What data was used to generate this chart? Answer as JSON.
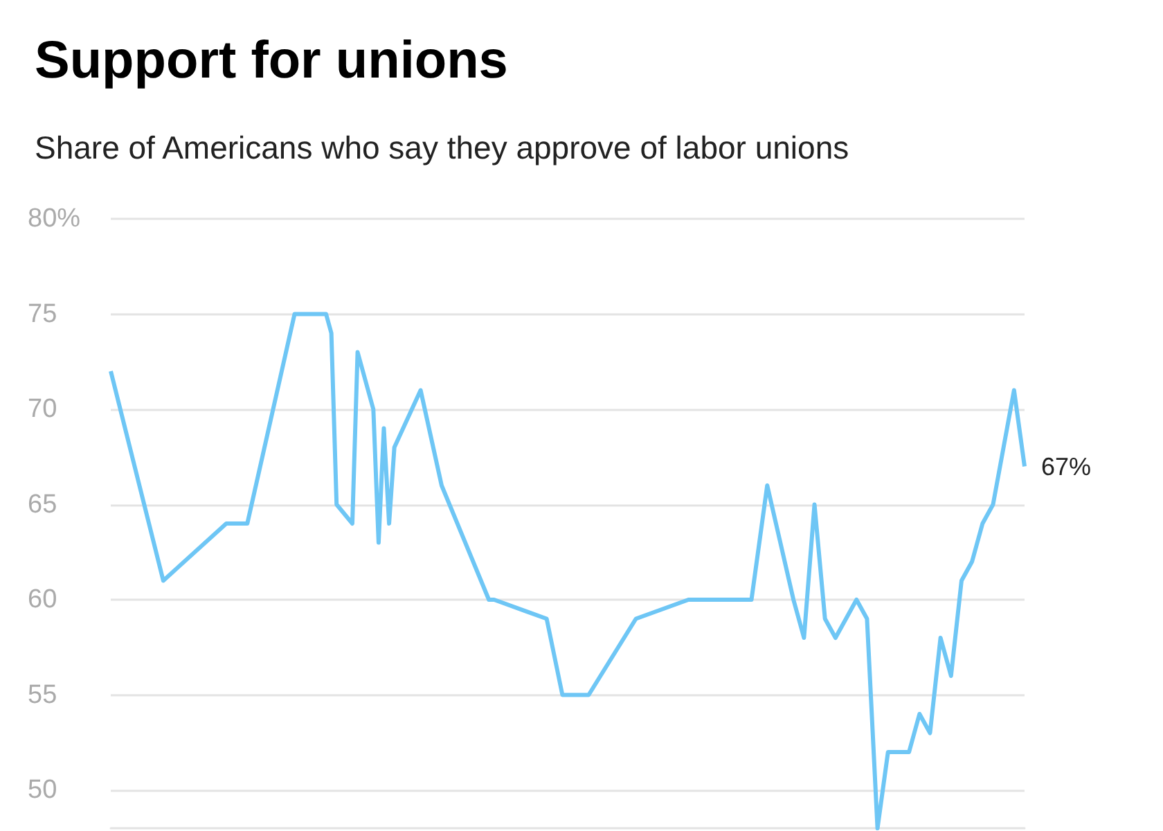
{
  "chart_data": {
    "type": "line",
    "title": "Support for unions",
    "subtitle": "Share of Americans who say they approve of labor unions",
    "categories": [
      null,
      null,
      null,
      null,
      null,
      null,
      null,
      null,
      null,
      null,
      null,
      null,
      null,
      null,
      null,
      null,
      null,
      null,
      null,
      null,
      null,
      null,
      null,
      null,
      null,
      null,
      null,
      null,
      null,
      null,
      null,
      null,
      null,
      null,
      null,
      null,
      null,
      null,
      null,
      null,
      null,
      null,
      null,
      null,
      null,
      null,
      null,
      null,
      null,
      null,
      null,
      null,
      null,
      null,
      null,
      null,
      null,
      null,
      null,
      null,
      null,
      null,
      null,
      null,
      null,
      null,
      null,
      null,
      null,
      null,
      null,
      null,
      null,
      null,
      null,
      null,
      null,
      null,
      null,
      null,
      null,
      null,
      null,
      null,
      null,
      null,
      null,
      null,
      null,
      null,
      null,
      null,
      null,
      null,
      null,
      null,
      null,
      null,
      null,
      null,
      null,
      null,
      null,
      null,
      null,
      null,
      null,
      null,
      null,
      null,
      null,
      null,
      null,
      null,
      null,
      null,
      null,
      null,
      null,
      null,
      null,
      null,
      null,
      null,
      null,
      null,
      null,
      null,
      null,
      null,
      null,
      null,
      null,
      null,
      null,
      null,
      null,
      null,
      null,
      null,
      null,
      null,
      null,
      null,
      null,
      null,
      null,
      null,
      null,
      null,
      null,
      null,
      null,
      null,
      null,
      null,
      null,
      null,
      null,
      null,
      null,
      null,
      null,
      null,
      null,
      null,
      null,
      null,
      null,
      null,
      null,
      null,
      null,
      null,
      null
    ],
    "series": [
      {
        "color": "#6ec6f5",
        "values": [
          72,
          null,
          null,
          null,
          null,
          null,
          null,
          null,
          null,
          null,
          61,
          null,
          null,
          null,
          null,
          null,
          null,
          null,
          null,
          null,
          null,
          null,
          64,
          null,
          null,
          null,
          64,
          null,
          null,
          null,
          null,
          null,
          null,
          null,
          null,
          75,
          null,
          null,
          null,
          null,
          null,
          75,
          74,
          65,
          null,
          null,
          64,
          73,
          null,
          null,
          70,
          63,
          69,
          64,
          68,
          null,
          null,
          null,
          null,
          71,
          null,
          null,
          null,
          66,
          null,
          null,
          null,
          null,
          null,
          null,
          null,
          null,
          60,
          60,
          null,
          null,
          null,
          null,
          null,
          null,
          null,
          null,
          null,
          59,
          null,
          null,
          55,
          null,
          null,
          null,
          null,
          55,
          null,
          null,
          null,
          null,
          null,
          null,
          null,
          null,
          59,
          null,
          null,
          null,
          null,
          null,
          null,
          null,
          null,
          null,
          60,
          null,
          null,
          null,
          null,
          null,
          null,
          null,
          null,
          null,
          null,
          null,
          60,
          null,
          null,
          66,
          null,
          null,
          null,
          null,
          60,
          null,
          58,
          null,
          65,
          null,
          59,
          null,
          58,
          null,
          null,
          null,
          60,
          null,
          59,
          null,
          48,
          null,
          52,
          null,
          null,
          null,
          52,
          null,
          54,
          null,
          53,
          null,
          58,
          null,
          56,
          null,
          61,
          null,
          62,
          null,
          64,
          null,
          65,
          null,
          null,
          null,
          71,
          null,
          67
        ],
        "value_labels": [
          null,
          null,
          null,
          null,
          null,
          null,
          null,
          null,
          null,
          null,
          null,
          null,
          null,
          null,
          null,
          null,
          null,
          null,
          null,
          null,
          null,
          null,
          null,
          null,
          null,
          null,
          null,
          null,
          null,
          null,
          null,
          null,
          null,
          null,
          null,
          null,
          null,
          null,
          null,
          null,
          null,
          null,
          null,
          null,
          null,
          null,
          null,
          null,
          null,
          null,
          null,
          null,
          null,
          null,
          null,
          null,
          null,
          null,
          null,
          null,
          null,
          null,
          null,
          null,
          null,
          null,
          null,
          null,
          null,
          null,
          null,
          null,
          null,
          null,
          null,
          null,
          null,
          null,
          null,
          null,
          null,
          null,
          null,
          null,
          null,
          null,
          null,
          null,
          null,
          null,
          null,
          null,
          null,
          null,
          null,
          null,
          null,
          null,
          null,
          null,
          null,
          null,
          null,
          null,
          null,
          null,
          null,
          null,
          null,
          null,
          null,
          null,
          null,
          null,
          null,
          null,
          null,
          null,
          null,
          null,
          null,
          null,
          null,
          null,
          null,
          null,
          null,
          null,
          null,
          null,
          null,
          null,
          null,
          null,
          null,
          null,
          null,
          null,
          null,
          null,
          null,
          null,
          null,
          null,
          null,
          null,
          null,
          null,
          null,
          null,
          null,
          null,
          null,
          null,
          null,
          null,
          null,
          null,
          null,
          null,
          null,
          null,
          null,
          null,
          null,
          null,
          null,
          null,
          null,
          null,
          null,
          null,
          null,
          null,
          "67%"
        ]
      }
    ],
    "ylim": [
      48,
      80
    ],
    "yticks": [
      50,
      55,
      60,
      65,
      70,
      75,
      {
        "value": 80,
        "label": "80%"
      }
    ],
    "grid": "y",
    "tick_labels": "y",
    "marker": "none",
    "line_style": "solid"
  }
}
